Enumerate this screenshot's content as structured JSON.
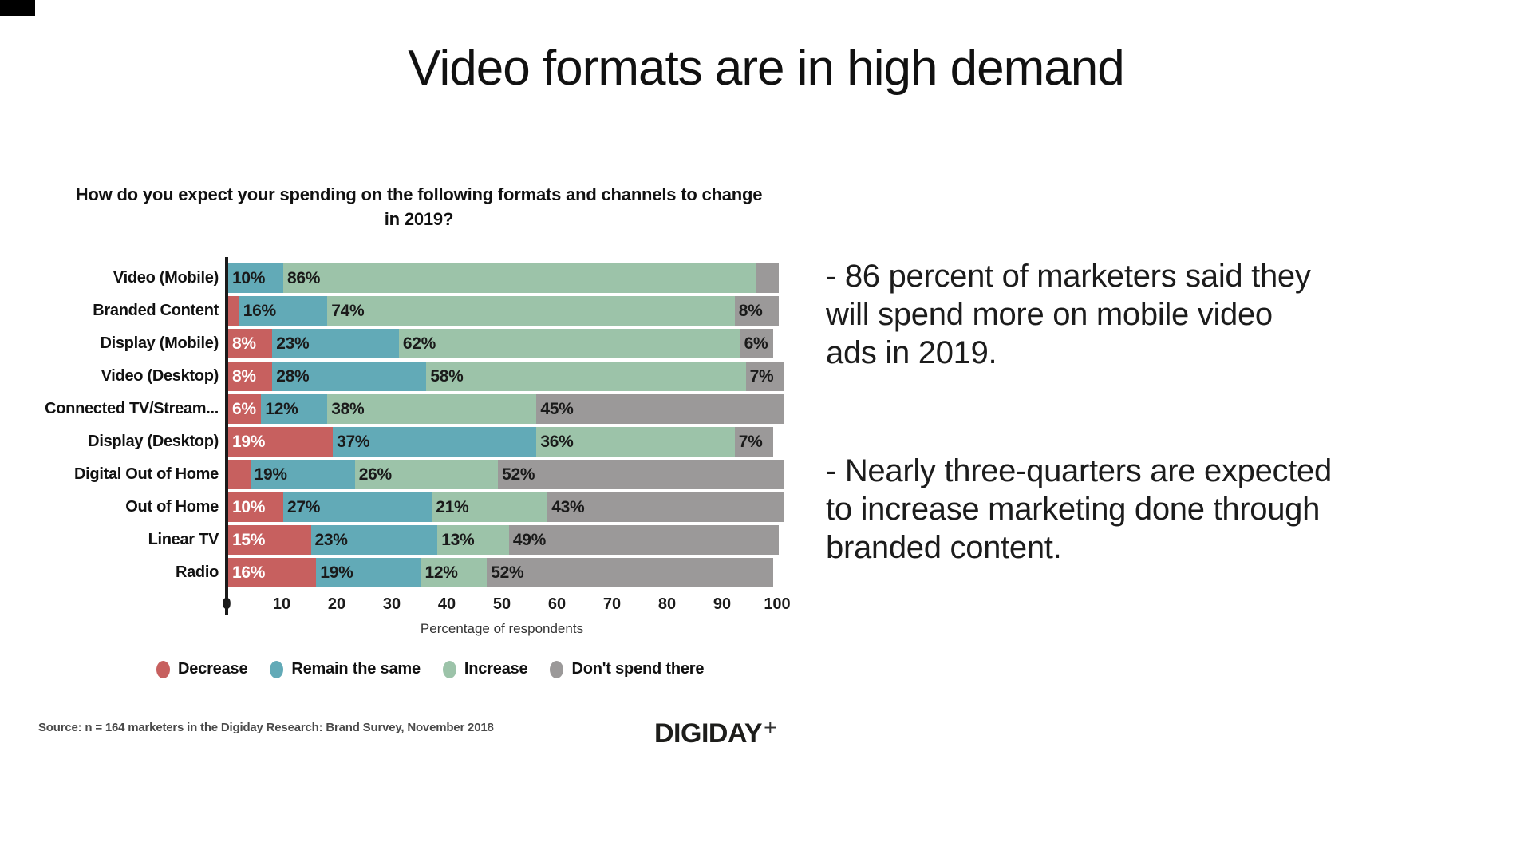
{
  "page": {
    "title": "Video formats are in high demand"
  },
  "insights": {
    "para1": "- 86 percent of marketers said they\nwill spend more on mobile video\nads in 2019.",
    "para2": "- Nearly three-quarters are expected\nto increase marketing done through\nbranded content."
  },
  "footer": {
    "source": "Source: n = 164 marketers in the Digiday Research: Brand Survey, November 2018",
    "logo_text": "DIGIDAY",
    "logo_plus": "+"
  },
  "chart_data": {
    "type": "bar",
    "orientation": "horizontal-stacked",
    "title": "How do you expect your spending on the following formats and channels to change\nin 2019?",
    "xlabel": "Percentage of respondents",
    "xlim": [
      0,
      100
    ],
    "x_ticks": [
      0,
      10,
      20,
      30,
      40,
      50,
      60,
      70,
      80,
      90,
      100
    ],
    "grid": false,
    "legend_position": "bottom",
    "series": [
      {
        "name": "Decrease",
        "color": "#c7605f",
        "label_color": "#ffffff"
      },
      {
        "name": "Remain the same",
        "color": "#62aab7",
        "label_color": "#1a1a1a"
      },
      {
        "name": "Increase",
        "color": "#9cc3a9",
        "label_color": "#1a1a1a"
      },
      {
        "name": "Don't spend there",
        "color": "#9b9999",
        "label_color": "#1a1a1a"
      }
    ],
    "categories": [
      "Video (Mobile)",
      "Branded Content",
      "Display (Mobile)",
      "Video (Desktop)",
      "Connected TV/Stream...",
      "Display (Desktop)",
      "Digital Out of Home",
      "Out of Home",
      "Linear TV",
      "Radio"
    ],
    "rows": [
      {
        "category": "Video (Mobile)",
        "values": [
          0,
          10,
          86,
          4
        ],
        "labels": [
          "",
          "10%",
          "86%",
          ""
        ]
      },
      {
        "category": "Branded Content",
        "values": [
          2,
          16,
          74,
          8
        ],
        "labels": [
          "",
          "16%",
          "74%",
          "8%"
        ]
      },
      {
        "category": "Display (Mobile)",
        "values": [
          8,
          23,
          62,
          6
        ],
        "labels": [
          "8%",
          "23%",
          "62%",
          "6%"
        ]
      },
      {
        "category": "Video (Desktop)",
        "values": [
          8,
          28,
          58,
          7
        ],
        "labels": [
          "8%",
          "28%",
          "58%",
          "7%"
        ]
      },
      {
        "category": "Connected TV/Stream...",
        "values": [
          6,
          12,
          38,
          45
        ],
        "labels": [
          "6%",
          "12%",
          "38%",
          "45%"
        ]
      },
      {
        "category": "Display (Desktop)",
        "values": [
          19,
          37,
          36,
          7
        ],
        "labels": [
          "19%",
          "37%",
          "36%",
          "7%"
        ]
      },
      {
        "category": "Digital Out of Home",
        "values": [
          4,
          19,
          26,
          52
        ],
        "labels": [
          "",
          "19%",
          "26%",
          "52%"
        ]
      },
      {
        "category": "Out of Home",
        "values": [
          10,
          27,
          21,
          43
        ],
        "labels": [
          "10%",
          "27%",
          "21%",
          "43%"
        ]
      },
      {
        "category": "Linear TV",
        "values": [
          15,
          23,
          13,
          49
        ],
        "labels": [
          "15%",
          "23%",
          "13%",
          "49%"
        ]
      },
      {
        "category": "Radio",
        "values": [
          16,
          19,
          12,
          52
        ],
        "labels": [
          "16%",
          "19%",
          "12%",
          "52%"
        ]
      }
    ]
  }
}
